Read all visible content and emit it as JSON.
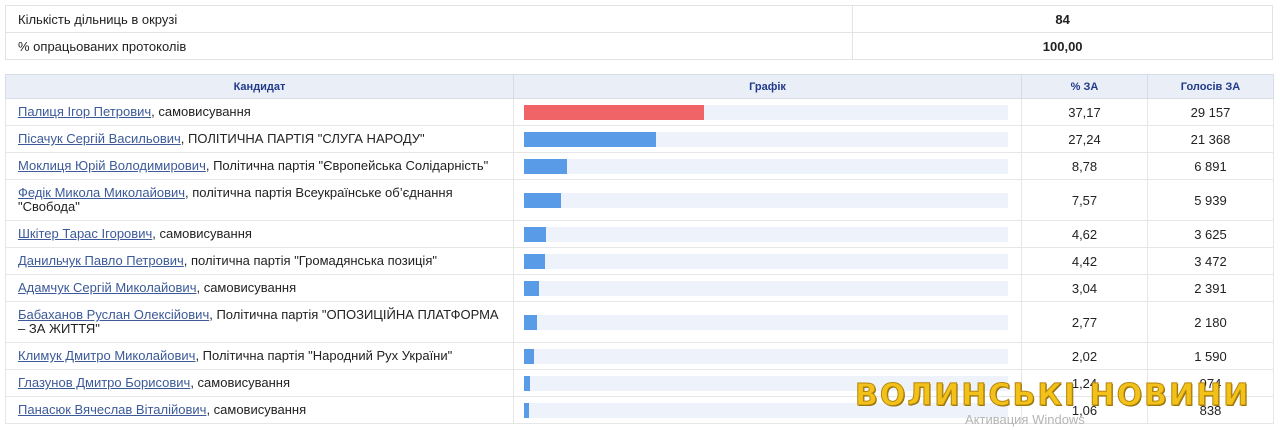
{
  "summary": [
    {
      "label": "Кількість дільниць в окрузі",
      "value": "84"
    },
    {
      "label": "% опрацьованих протоколів",
      "value": "100,00"
    }
  ],
  "table": {
    "headers": {
      "candidate": "Кандидат",
      "graph": "Графік",
      "percent": "% ЗА",
      "votes": "Голосів ЗА"
    },
    "max_percent": 37.17,
    "bar_colors": {
      "leader": "#f06468",
      "other": "#5a9be8",
      "track": "#eef2fb"
    },
    "rows": [
      {
        "name": "Палиця Ігор Петрович",
        "party": ", самовисування",
        "percent": "37,17",
        "votes": "29 157",
        "pct_value": 37.17,
        "tall": false
      },
      {
        "name": "Пісачук Сергій Васильович",
        "party": ", ПОЛІТИЧНА ПАРТІЯ \"СЛУГА НАРОДУ\"",
        "percent": "27,24",
        "votes": "21 368",
        "pct_value": 27.24,
        "tall": false
      },
      {
        "name": "Моклиця Юрій Володимирович",
        "party": ", Політична партія \"Європейська Солідарність\"",
        "percent": "8,78",
        "votes": "6 891",
        "pct_value": 8.78,
        "tall": false
      },
      {
        "name": "Федік Микола Миколайович",
        "party": ", політична партія Всеукраїнське об’єднання \"Свобода\"",
        "percent": "7,57",
        "votes": "5 939",
        "pct_value": 7.57,
        "tall": true
      },
      {
        "name": "Шкітер Тарас Ігорович",
        "party": ", самовисування",
        "percent": "4,62",
        "votes": "3 625",
        "pct_value": 4.62,
        "tall": false
      },
      {
        "name": "Данильчук Павло Петрович",
        "party": ", політична партія \"Громадянська позиція\"",
        "percent": "4,42",
        "votes": "3 472",
        "pct_value": 4.42,
        "tall": false
      },
      {
        "name": "Адамчук Сергій Миколайович",
        "party": ", самовисування",
        "percent": "3,04",
        "votes": "2 391",
        "pct_value": 3.04,
        "tall": false
      },
      {
        "name": "Бабаханов Руслан Олексійович",
        "party": ", Політична партія \"ОПОЗИЦІЙНА ПЛАТФОРМА – ЗА ЖИТТЯ\"",
        "percent": "2,77",
        "votes": "2 180",
        "pct_value": 2.77,
        "tall": true
      },
      {
        "name": "Климук Дмитро Миколайович",
        "party": ", Політична партія \"Народний Рух України\"",
        "percent": "2,02",
        "votes": "1 590",
        "pct_value": 2.02,
        "tall": false
      },
      {
        "name": "Глазунов Дмитро Борисович",
        "party": ", самовисування",
        "percent": "1,24",
        "votes": "974",
        "pct_value": 1.24,
        "tall": false
      },
      {
        "name": "Панасюк Вячеслав Віталійович",
        "party": ", самовисування",
        "percent": "1,06",
        "votes": "838",
        "pct_value": 1.06,
        "tall": false
      }
    ]
  },
  "overlays": {
    "logo_text": "ВОЛИНСЬКІ НОВИНИ",
    "windows_text": "Активация Windows"
  }
}
